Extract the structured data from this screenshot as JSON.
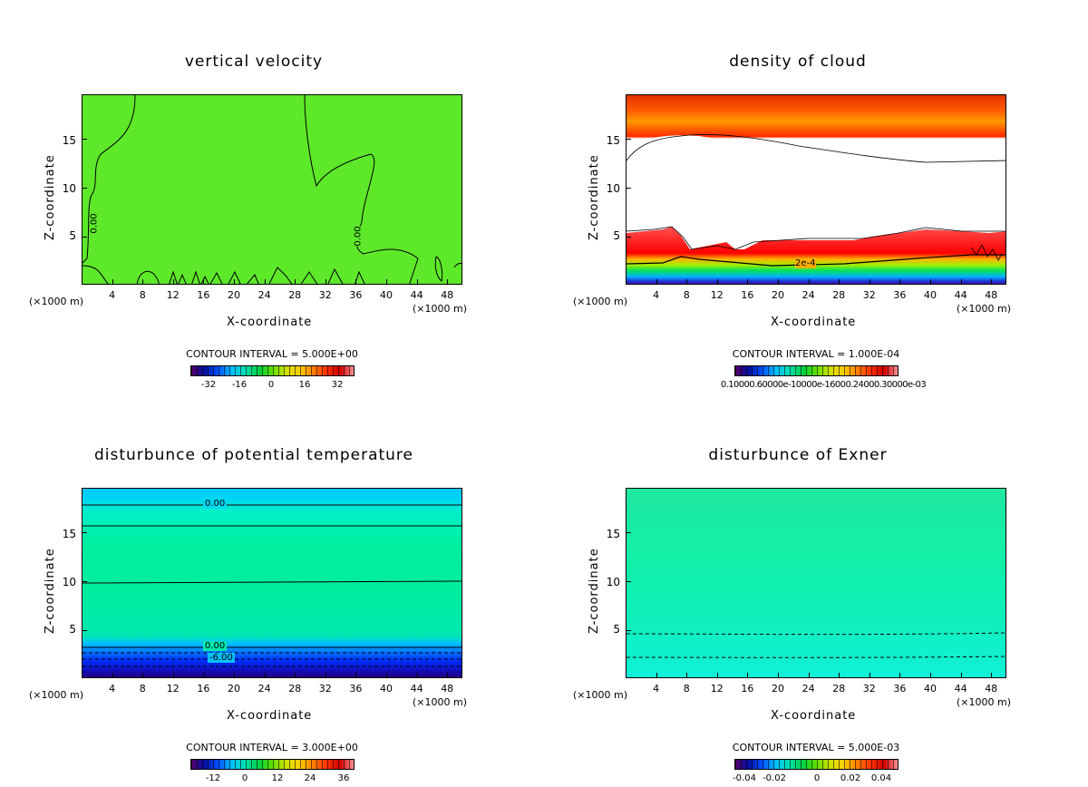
{
  "axes": {
    "xlabel": "X-coordinate",
    "ylabel": "Z-coordinate",
    "unit_left": "(×1000 m)",
    "unit_right": "(×1000 m)",
    "xticks": [
      "4",
      "8",
      "12",
      "16",
      "20",
      "24",
      "28",
      "32",
      "36",
      "40",
      "44",
      "48"
    ],
    "yticks": [
      "5",
      "10",
      "15"
    ]
  },
  "panels": [
    {
      "title": "vertical velocity",
      "contour_interval": "CONTOUR INTERVAL = 5.000E+00",
      "colorbar_labels": [
        "-32",
        "-16",
        "0",
        "16",
        "32"
      ],
      "contour_labels": [
        "0.00",
        "0.00"
      ]
    },
    {
      "title": "density of cloud",
      "contour_interval": "CONTOUR INTERVAL = 1.000E-04",
      "colorbar_labels": [
        "0.10000.60000e-10000e-16000.24000.30000e-03"
      ],
      "contour_labels": [
        "2e-4"
      ]
    },
    {
      "title": "disturbunce of potential temperature",
      "contour_interval": "CONTOUR INTERVAL = 3.000E+00",
      "colorbar_labels": [
        "-12",
        "0",
        "12",
        "24",
        "36"
      ],
      "contour_labels": [
        "0.00",
        "0.00",
        "-6.00"
      ]
    },
    {
      "title": "disturbunce of Exner",
      "contour_interval": "CONTOUR INTERVAL = 5.000E-03",
      "colorbar_labels": [
        "-0.04",
        "-0.02",
        "0",
        "0.02",
        "0.04"
      ],
      "contour_labels": []
    }
  ],
  "chart_data": [
    {
      "type": "heatmap",
      "title": "vertical velocity",
      "xlabel": "X-coordinate",
      "ylabel": "Z-coordinate",
      "xlim": [
        0,
        50
      ],
      "ylim": [
        0,
        19.5
      ],
      "colorbar": [
        -32,
        -16,
        0,
        16,
        32
      ],
      "contour_interval": 5.0,
      "contour_labels": [
        "0.00",
        "0.00"
      ]
    },
    {
      "type": "heatmap",
      "title": "density of cloud",
      "xlabel": "X-coordinate",
      "ylabel": "Z-coordinate",
      "xlim": [
        0,
        50
      ],
      "ylim": [
        0,
        19.5
      ],
      "contour_interval": 0.0001,
      "contour_labels": [
        "2e-4"
      ]
    },
    {
      "type": "heatmap",
      "title": "disturbunce of potential temperature",
      "xlabel": "X-coordinate",
      "ylabel": "Z-coordinate",
      "xlim": [
        0,
        50
      ],
      "ylim": [
        0,
        19.5
      ],
      "colorbar": [
        -12,
        0,
        12,
        24,
        36
      ],
      "contour_interval": 3.0,
      "contour_labels": [
        "0.00",
        "0.00",
        "-6.00"
      ]
    },
    {
      "type": "heatmap",
      "title": "disturbunce of Exner",
      "xlabel": "X-coordinate",
      "ylabel": "Z-coordinate",
      "xlim": [
        0,
        50
      ],
      "ylim": [
        0,
        19.5
      ],
      "colorbar": [
        -0.04,
        -0.02,
        0,
        0.02,
        0.04
      ],
      "contour_interval": 0.005
    }
  ]
}
